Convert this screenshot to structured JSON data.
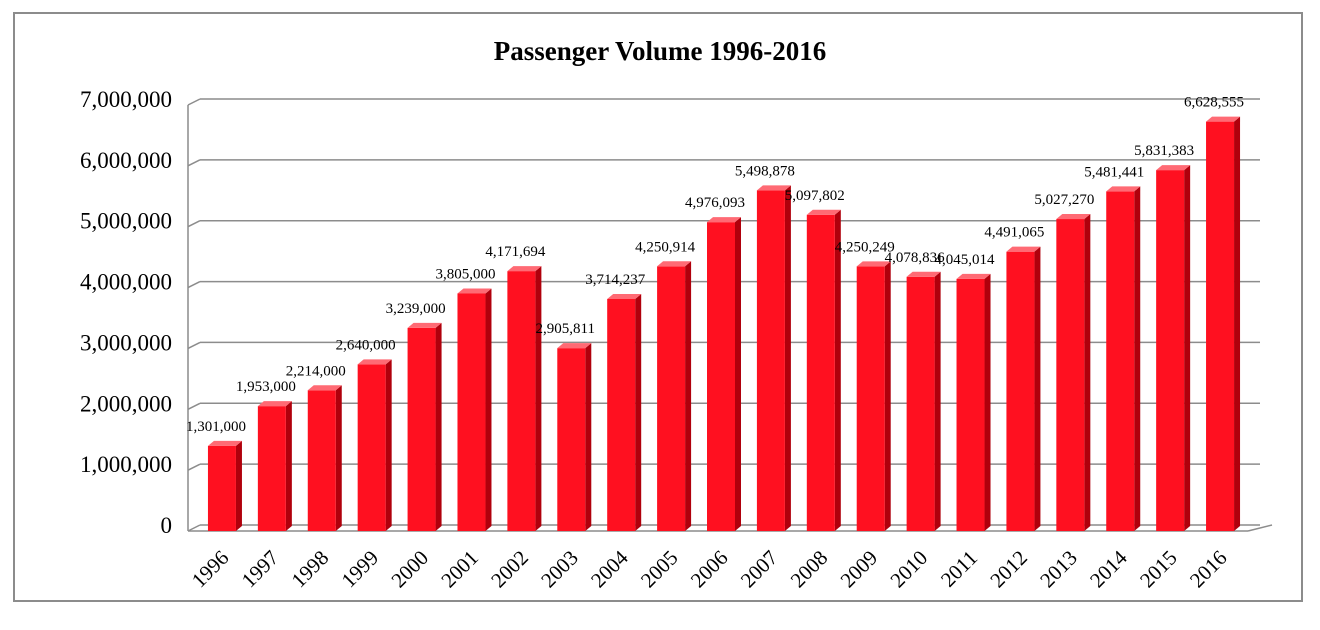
{
  "chart_data": {
    "type": "bar",
    "title": "Passenger Volume 1996-2016",
    "xlabel": "",
    "ylabel": "",
    "ylim": [
      0,
      7000000
    ],
    "ytick_values": [
      0,
      1000000,
      2000000,
      3000000,
      4000000,
      5000000,
      6000000,
      7000000
    ],
    "ytick_labels": [
      "0",
      "1,000,000",
      "2,000,000",
      "3,000,000",
      "4,000,000",
      "5,000,000",
      "6,000,000",
      "7,000,000"
    ],
    "categories": [
      "1996",
      "1997",
      "1998",
      "1999",
      "2000",
      "2001",
      "2002",
      "2003",
      "2004",
      "2005",
      "2006",
      "2007",
      "2008",
      "2009",
      "2010",
      "2011",
      "2012",
      "2013",
      "2014",
      "2015",
      "2016"
    ],
    "values": [
      1301000,
      1953000,
      2214000,
      2640000,
      3239000,
      3805000,
      4171694,
      2905811,
      3714237,
      4250914,
      4976093,
      5498878,
      5097802,
      4250249,
      4078836,
      4045014,
      4491065,
      5027270,
      5481441,
      5831383,
      6628555
    ],
    "data_labels": [
      "1,301,000",
      "1,953,000",
      "2,214,000",
      "2,640,000",
      "3,239,000",
      "3,805,000",
      "4,171,694",
      "2,905,811",
      "3,714,237",
      "4,250,914",
      "4,976,093",
      "5,498,878",
      "5,097,802",
      "4,250,249",
      "4,078,836",
      "4,045,014",
      "4,491,065",
      "5,027,270",
      "5,481,441",
      "5,831,383",
      "6,628,555"
    ],
    "grid": true,
    "legend": "none",
    "bar_color": "#ff1020",
    "bar_side_color": "#b0000c",
    "bar_top_color": "#ff6a74"
  }
}
